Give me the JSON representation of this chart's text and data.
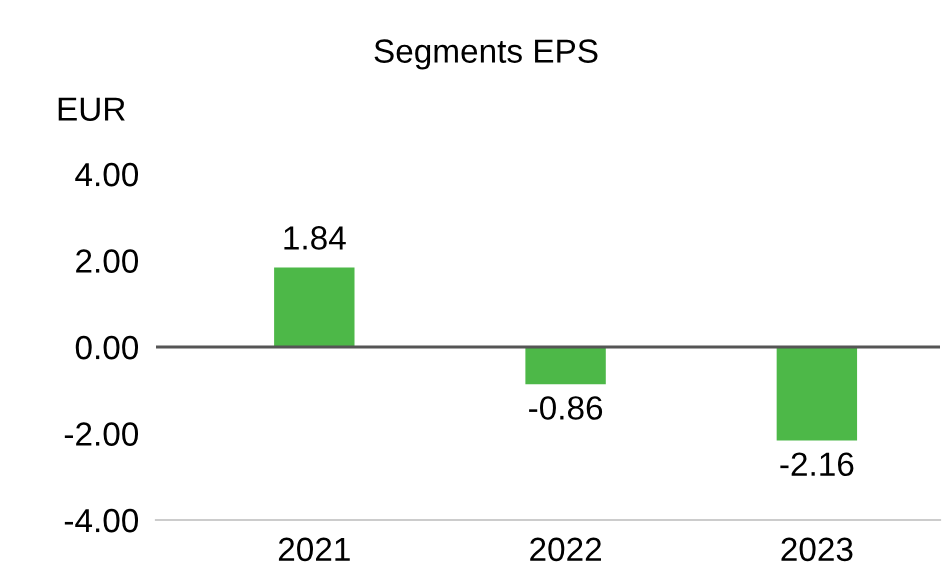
{
  "chart_data": {
    "type": "bar",
    "title": "Segments EPS",
    "ylabel": "EUR",
    "categories": [
      "2021",
      "2022",
      "2023"
    ],
    "values": [
      1.84,
      -0.86,
      -2.16
    ],
    "color": "#4db848",
    "value_labels": [
      "1.84",
      "-0.86",
      "-2.16"
    ],
    "ylim": [
      -4,
      4
    ],
    "yticks": [
      {
        "value": -4,
        "label": "-4.00"
      },
      {
        "value": -2,
        "label": "-2.00"
      },
      {
        "value": 0,
        "label": "0.00"
      },
      {
        "value": 2,
        "label": "2.00"
      },
      {
        "value": 4,
        "label": "4.00"
      }
    ],
    "ref_lines": [
      {
        "axis": "y",
        "value": 0,
        "label": null,
        "color": "#555555"
      }
    ],
    "grid": false
  }
}
